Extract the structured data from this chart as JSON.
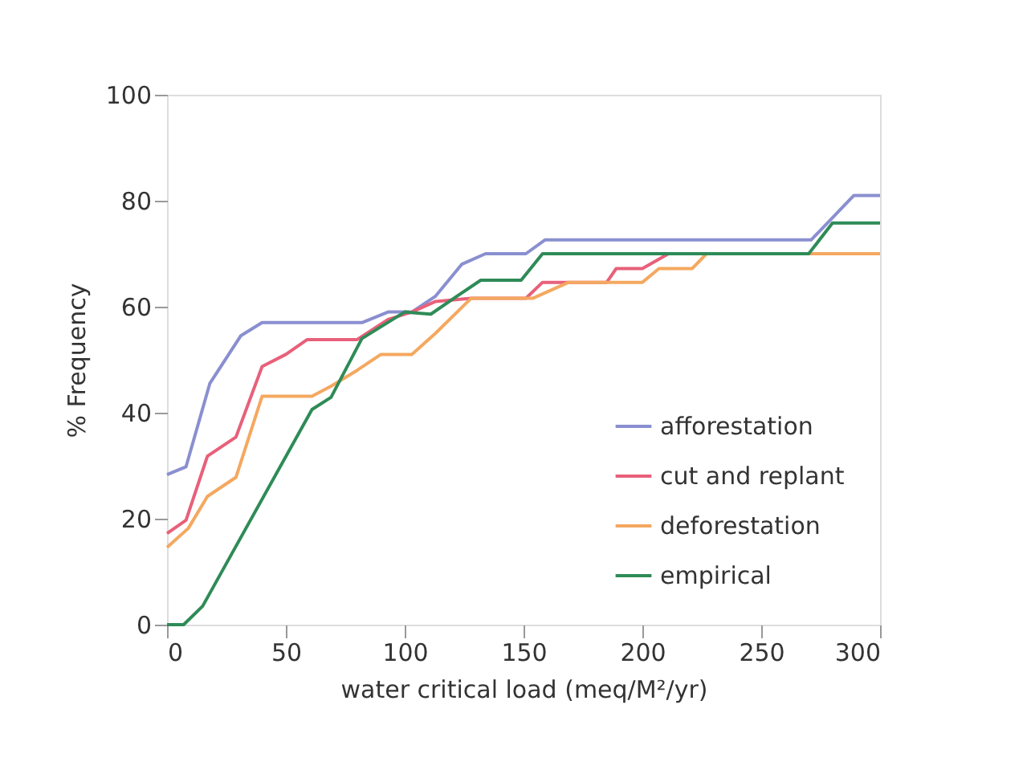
{
  "chart_data": {
    "type": "line",
    "xlabel": "water critical load (meq/M²/yr)",
    "ylabel": "% Frequency",
    "xlim": [
      0,
      300
    ],
    "xticks": [
      0,
      50,
      100,
      150,
      200,
      250,
      300
    ],
    "ylim": [
      0,
      100
    ],
    "yticks": [
      0,
      20,
      40,
      60,
      80,
      100
    ],
    "grid": false,
    "legend": "bottom right",
    "marker": "none",
    "line_style": "solid",
    "series": [
      {
        "name": "afforestation",
        "color": "#8a8fd0",
        "x": [
          0,
          8,
          18,
          31,
          40,
          82,
          93,
          103,
          113,
          124,
          134,
          151,
          159,
          271,
          289,
          300
        ],
        "values": [
          28.3,
          29.8,
          45.5,
          54.5,
          57,
          57,
          59,
          59,
          62,
          68,
          70,
          70,
          72.6,
          72.6,
          81,
          81
        ]
      },
      {
        "name": "cut and replant",
        "color": "#e8607a",
        "x": [
          0,
          8,
          17,
          29,
          40,
          50,
          59,
          80,
          93,
          103,
          113,
          128,
          151,
          158,
          185,
          189,
          200,
          211,
          300
        ],
        "values": [
          17.2,
          19.7,
          31.8,
          35.4,
          48.7,
          51,
          53.8,
          53.8,
          57.6,
          59,
          61,
          61.6,
          61.6,
          64.6,
          64.6,
          67.2,
          67.2,
          70,
          70
        ]
      },
      {
        "name": "deforestation",
        "color": "#f4a860",
        "x": [
          0,
          9,
          17,
          29,
          40,
          61,
          69,
          80,
          90,
          103,
          113,
          128,
          154,
          169,
          200,
          207,
          221,
          227,
          300
        ],
        "values": [
          14.6,
          18.2,
          24.2,
          27.8,
          43.1,
          43.1,
          45,
          48,
          51,
          51,
          55,
          61.6,
          61.6,
          64.6,
          64.6,
          67.2,
          67.2,
          70,
          70
        ]
      },
      {
        "name": "empirical",
        "color": "#2e8b57",
        "x": [
          0,
          7,
          15,
          61,
          69,
          82,
          100,
          111,
          122,
          132,
          149,
          158,
          270,
          280,
          300
        ],
        "values": [
          0,
          0,
          3.5,
          40.6,
          42.9,
          54,
          59,
          58.6,
          62,
          65,
          65,
          70,
          70,
          75.8,
          75.8
        ]
      }
    ]
  }
}
